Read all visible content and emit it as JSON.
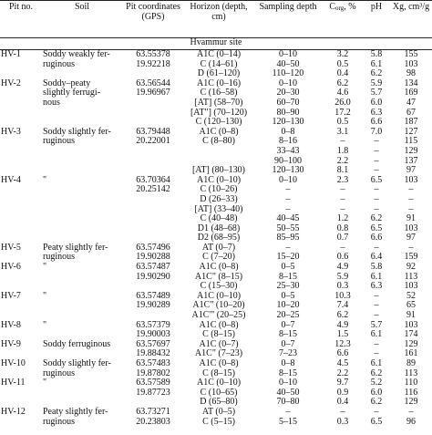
{
  "table": {
    "header": [
      "Pit no.",
      "Soil",
      "Pit coordinates (GPS)",
      "Horizon (depth, cm)",
      "Sampling depth",
      {
        "main": "C",
        "sub": "org",
        "rest": ", %"
      },
      "pH",
      "Xg, cm³/g"
    ],
    "site": "Hvammur site",
    "rows": [
      [
        "HV-1",
        "Soddy weakly fer-",
        "63.55378",
        "A1C (0–14)",
        "0–10",
        "3.2",
        "5.8",
        "155"
      ],
      [
        null,
        "ruginous",
        "19.92218",
        "C (14–61)",
        "40–50",
        "0.5",
        "6.1",
        "103"
      ],
      [
        null,
        null,
        null,
        "D (61–120)",
        "110–120",
        "0.4",
        "6.2",
        "98"
      ],
      [
        "HV-2",
        "Soddy–peaty",
        "63.56544",
        "A1C (0–16)",
        "0–10",
        "6.2",
        "5.9",
        "134"
      ],
      [
        null,
        "slightly ferrugi-",
        "19.96967",
        "C (16–58)",
        "20–30",
        "4.6",
        "5.7",
        "169"
      ],
      [
        null,
        "nous",
        null,
        "[AT] (58–70)",
        "60–70",
        "26.0",
        "6.0",
        "47"
      ],
      [
        null,
        null,
        null,
        "[AT\"] (70–120)",
        "80–90",
        "17.2",
        "6.3",
        "67"
      ],
      [
        null,
        null,
        null,
        "C (120–130)",
        "120–130",
        "0.5",
        "6.6",
        "187"
      ],
      [
        "HV-3",
        "Soddy slightly fer-",
        "63.79448",
        "A1C (0–8)",
        "0–8",
        "3.1",
        "7.0",
        "127"
      ],
      [
        null,
        "ruginous",
        "20.22001",
        "C (8–80)",
        "8–16",
        "–",
        "–",
        "115"
      ],
      [
        null,
        null,
        null,
        null,
        "33–43",
        "1.8",
        "–",
        "129"
      ],
      [
        null,
        null,
        null,
        null,
        "90–100",
        "2.2",
        "–",
        "137"
      ],
      [
        null,
        null,
        null,
        "[AT] (80–130)",
        "120–130",
        "8.1",
        "–",
        "97"
      ],
      [
        "HV-4",
        "\"",
        "63.70364",
        "A1C (0–10)",
        "0–10",
        "2.3",
        "6.5",
        "103"
      ],
      [
        null,
        null,
        "20.25142",
        "C (10–26)",
        "–",
        "–",
        "–",
        "–"
      ],
      [
        null,
        null,
        null,
        "D (26–33)",
        "–",
        "–",
        "–",
        "–"
      ],
      [
        null,
        null,
        null,
        "[AT] (33–40)",
        "–",
        "–",
        "–",
        "–"
      ],
      [
        null,
        null,
        null,
        "C (40–48)",
        "40–45",
        "1.2",
        "6.2",
        "91"
      ],
      [
        null,
        null,
        null,
        "D1 (48–68)",
        "50–55",
        "0.8",
        "6.5",
        "103"
      ],
      [
        null,
        null,
        null,
        "D2 (68–95)",
        "85–95",
        "0.7",
        "6.6",
        "97"
      ],
      [
        "HV-5",
        "Peaty slightly fer-",
        "63.57496",
        "AT (0–7)",
        "–",
        "–",
        "–",
        "–"
      ],
      [
        null,
        "ruginous",
        "19.90288",
        "C (7–20)",
        "15–20",
        "0.6",
        "6.4",
        "159"
      ],
      [
        "HV-6",
        "\"",
        "63.57487",
        "A1C (0–8)",
        "0–5",
        "4.9",
        "5.8",
        "92"
      ],
      [
        null,
        null,
        "19.90290",
        "A1C\" (8–15)",
        "8–15",
        "5.9",
        "6.1",
        "113"
      ],
      [
        null,
        null,
        null,
        "C (15–30)",
        "25–30",
        "0.3",
        "6.3",
        "103"
      ],
      [
        "HV-7",
        "\"",
        "63.57489",
        "A1C (0–10)",
        "0–5",
        "10.3",
        "–",
        "52"
      ],
      [
        null,
        null,
        "19.90289",
        "A1C\" (10–20)",
        "10–20",
        "7.4",
        "–",
        "65"
      ],
      [
        null,
        null,
        null,
        "A1C'\" (20–25)",
        "20–25",
        "6.2",
        "–",
        "91"
      ],
      [
        "HV-8",
        "\"",
        "63.57379",
        "A1C (0–8)",
        "0–7",
        "4.9",
        "5.7",
        "103"
      ],
      [
        null,
        null,
        "19.90003",
        "C (8–15)",
        "8–15",
        "1.5",
        "6.1",
        "174"
      ],
      [
        "HV-9",
        "Soddy ferruginous",
        "63.57697",
        "A1C (0–7)",
        "0–7",
        "12.3",
        "–",
        "129"
      ],
      [
        null,
        null,
        "19.88432",
        "A1C\" (7–23)",
        "7–23",
        "6.6",
        "–",
        "161"
      ],
      [
        "HV-10",
        "Soddy slightly fer-",
        "63.57483",
        "A1C (0–8)",
        "0–8",
        "4.5",
        "6.1",
        "89"
      ],
      [
        null,
        "ruginous",
        "19.87802",
        "C (8–15)",
        "8–15",
        "2.2",
        "6.2",
        "113"
      ],
      [
        "HV-11",
        "\"",
        "63.57589",
        "A1C (0–10)",
        "0–10",
        "9.7",
        "5.2",
        "110"
      ],
      [
        null,
        null,
        "19.87723",
        "C (10–65)",
        "40–50",
        "0.9",
        "6.0",
        "116"
      ],
      [
        null,
        null,
        null,
        "D (65–80)",
        "70–80",
        "0.4",
        "6.2",
        "129"
      ],
      [
        "HV-12",
        "Peaty slightly fer-",
        "63.73271",
        "AT (0–5)",
        "–",
        "–",
        "–",
        "–"
      ],
      [
        null,
        "ruginous",
        "20.23803",
        "C (5–15)",
        "5–15",
        "0.3",
        "6.5",
        "96"
      ]
    ]
  }
}
